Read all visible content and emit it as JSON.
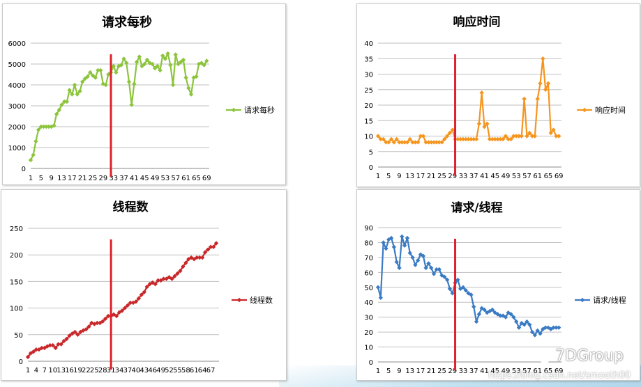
{
  "chart_data": [
    {
      "type": "line",
      "title": "请求每秒",
      "color": "#8cc43c",
      "ylim": [
        0,
        6000
      ],
      "yticks": [
        0,
        1000,
        2000,
        3000,
        4000,
        5000,
        6000
      ],
      "xlim": [
        1,
        70
      ],
      "xtick_labels": [
        "1",
        "5",
        "9",
        "13",
        "17",
        "21",
        "25",
        "29",
        "33",
        "37",
        "41",
        "45",
        "49",
        "53",
        "57",
        "61",
        "65",
        "69"
      ],
      "marker_x": 32,
      "series": [
        {
          "name": "请求每秒",
          "values": [
            400,
            650,
            1300,
            1850,
            2000,
            2000,
            2000,
            2000,
            2000,
            2050,
            2600,
            2800,
            3050,
            3200,
            3200,
            3750,
            3550,
            4000,
            3550,
            3700,
            4150,
            4300,
            4400,
            4600,
            4450,
            4350,
            4700,
            4700,
            4050,
            4000,
            4500,
            4600,
            4900,
            4600,
            4900,
            4950,
            5250,
            5050,
            4150,
            3050,
            4050,
            5100,
            5350,
            4900,
            5000,
            5200,
            5050,
            5000,
            4800,
            4900,
            4700,
            5400,
            5250,
            5500,
            4950,
            4000,
            5450,
            5000,
            5100,
            5200,
            4350,
            3850,
            3550,
            4350,
            4400,
            5000,
            5050,
            4950,
            5150
          ]
        }
      ]
    },
    {
      "type": "line",
      "title": "响应时间",
      "color": "#f5951e",
      "ylim": [
        0,
        40
      ],
      "yticks": [
        0,
        5,
        10,
        15,
        20,
        25,
        30,
        35,
        40
      ],
      "xlim": [
        1,
        70
      ],
      "xtick_labels": [
        "1",
        "5",
        "9",
        "13",
        "17",
        "21",
        "25",
        "29",
        "33",
        "37",
        "41",
        "45",
        "49",
        "53",
        "57",
        "61",
        "65",
        "69"
      ],
      "marker_x": 30,
      "series": [
        {
          "name": "响应时间",
          "values": [
            10,
            9,
            9,
            8,
            8,
            9,
            8,
            9,
            8,
            8,
            8,
            8,
            9,
            8,
            8,
            8,
            10,
            10,
            8,
            8,
            8,
            8,
            8,
            8,
            8,
            9,
            10,
            11,
            12,
            9,
            9,
            9,
            9,
            9,
            9,
            9,
            9,
            9,
            14,
            24,
            13,
            14,
            9,
            9,
            9,
            9,
            9,
            9,
            10,
            9,
            9,
            10,
            10,
            10,
            10,
            22,
            10,
            11,
            10,
            10,
            22,
            27,
            35,
            25,
            27,
            11,
            12,
            10,
            10
          ]
        }
      ]
    },
    {
      "type": "line",
      "title": "线程数",
      "color": "#c8282a",
      "ylim": [
        0,
        250
      ],
      "yticks": [
        0,
        50,
        100,
        150,
        200,
        250
      ],
      "xlim": [
        1,
        70
      ],
      "xtick_labels": [
        "1",
        "4",
        "7",
        "10",
        "13",
        "16",
        "19",
        "22",
        "25",
        "28",
        "31",
        "34",
        "37",
        "40",
        "43",
        "46",
        "49",
        "52",
        "55",
        "58",
        "61",
        "64",
        "67"
      ],
      "marker_x": 31,
      "series": [
        {
          "name": "线程数",
          "values": [
            8,
            15,
            18,
            22,
            22,
            25,
            25,
            28,
            30,
            30,
            25,
            32,
            32,
            38,
            42,
            48,
            52,
            55,
            50,
            55,
            58,
            60,
            65,
            72,
            70,
            72,
            72,
            75,
            80,
            85,
            85,
            88,
            85,
            92,
            95,
            100,
            105,
            110,
            110,
            112,
            118,
            125,
            130,
            140,
            145,
            148,
            145,
            152,
            152,
            155,
            155,
            158,
            155,
            160,
            165,
            170,
            178,
            185,
            192,
            195,
            192,
            195,
            195,
            195,
            205,
            210,
            215,
            215,
            222
          ]
        }
      ]
    },
    {
      "type": "line",
      "title": "请求/线程",
      "color": "#3a7bc3",
      "ylim": [
        0,
        90
      ],
      "yticks": [
        0,
        10,
        20,
        30,
        40,
        50,
        60,
        70,
        80,
        90
      ],
      "xlim": [
        1,
        70
      ],
      "xtick_labels": [
        "1",
        "5",
        "9",
        "13",
        "17",
        "21",
        "25",
        "29",
        "33",
        "37",
        "41",
        "45",
        "49",
        "53",
        "57",
        "61",
        "65",
        "69"
      ],
      "marker_x": 30,
      "series": [
        {
          "name": "请求/线程",
          "values": [
            50,
            43,
            80,
            76,
            82,
            83,
            77,
            67,
            63,
            84,
            78,
            83,
            73,
            70,
            65,
            68,
            72,
            71,
            63,
            66,
            63,
            59,
            62,
            62,
            58,
            57,
            55,
            49,
            46,
            53,
            55,
            49,
            50,
            48,
            46,
            45,
            37,
            27,
            32,
            36,
            35,
            33,
            34,
            35,
            33,
            32,
            31,
            31,
            30,
            33,
            32,
            30,
            27,
            23,
            26,
            25,
            27,
            25,
            20,
            18,
            21,
            19,
            22,
            23,
            23,
            22,
            23,
            23,
            23
          ]
        }
      ]
    }
  ],
  "watermark": {
    "brand": "7DGroup",
    "url": "https://blog.csdn.net/smooth00"
  },
  "legend_marker_symbol": "diamond"
}
